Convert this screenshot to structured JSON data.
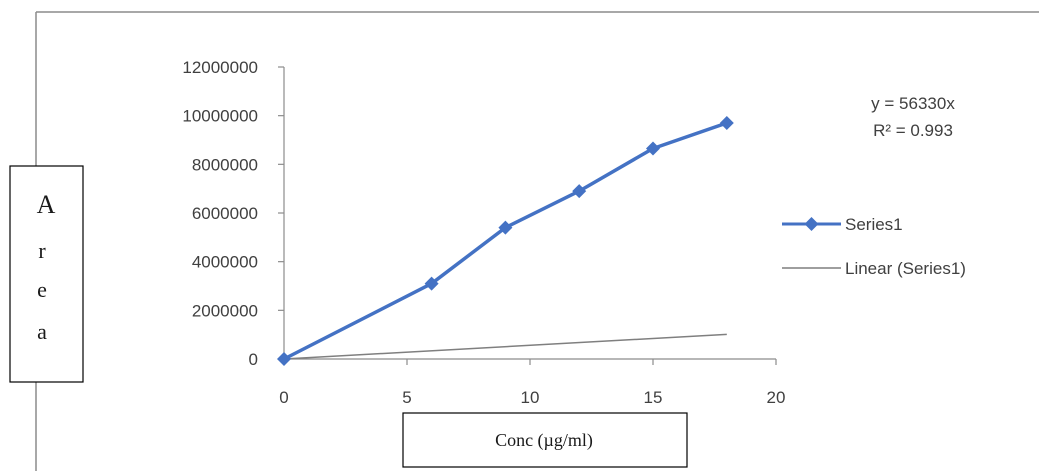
{
  "chart_data": {
    "type": "scatter",
    "title": "",
    "xlabel": "Conc (µg/ml)",
    "ylabel": "Area",
    "ylabel_letters": [
      "A",
      "r",
      "e",
      "a"
    ],
    "xlim": [
      0,
      20
    ],
    "ylim": [
      0,
      12000000
    ],
    "x_ticks": [
      "0",
      "5",
      "10",
      "15",
      "20"
    ],
    "y_ticks": [
      "0",
      "2000000",
      "4000000",
      "6000000",
      "8000000",
      "10000000",
      "12000000"
    ],
    "grid": false,
    "legend_position": "right",
    "series": [
      {
        "name": "Series1",
        "marker": "diamond",
        "color": "#4472C4",
        "x": [
          0,
          6,
          9,
          12,
          15,
          18
        ],
        "y": [
          0,
          3100000,
          5400000,
          6900000,
          8650000,
          9700000
        ]
      }
    ],
    "trendline": {
      "name": "Linear (Series1)",
      "color": "#7f7f7f",
      "slope": 56330,
      "equation": "y = 56330x",
      "r_squared": "R² = 0.993"
    }
  }
}
